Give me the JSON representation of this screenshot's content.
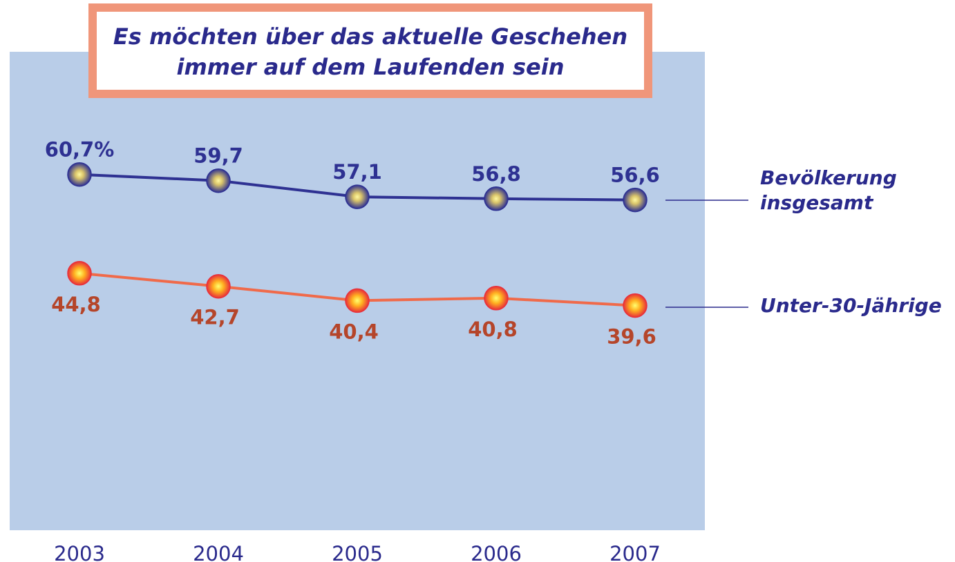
{
  "chart_data": {
    "type": "line",
    "title": [
      "Es möchten über das aktuelle Geschehen",
      "immer auf dem Laufenden sein"
    ],
    "categories": [
      "2003",
      "2004",
      "2005",
      "2006",
      "2007"
    ],
    "ylim": [
      0,
      80
    ],
    "series": [
      {
        "name": "Bevölkerung insgesamt",
        "color": "#2e3192",
        "values": [
          60.7,
          59.7,
          57.1,
          56.8,
          56.6
        ],
        "value_labels": [
          "60,7%",
          "59,7",
          "57,1",
          "56,8",
          "56,6"
        ]
      },
      {
        "name": "Unter-30-Jährige",
        "color": "#f06a4a",
        "values": [
          44.8,
          42.7,
          40.4,
          40.8,
          39.6
        ],
        "value_labels": [
          "44,8",
          "42,7",
          "40,4",
          "40,8",
          "39,6"
        ]
      }
    ]
  }
}
